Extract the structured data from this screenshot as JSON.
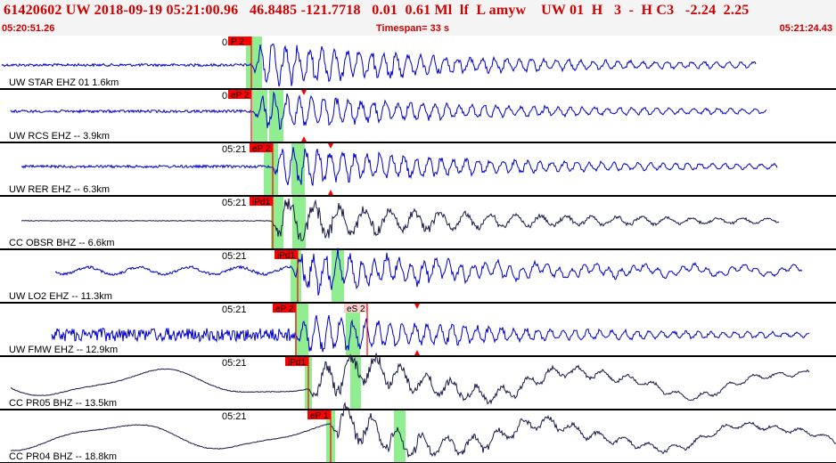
{
  "header": {
    "event_line": "61420602 UW 2018-09-19 05:21:00.96   46.8485 -121.7718   0.01  0.61 Ml  lf  L amyw    UW 01  H   3  -  H C3   -2.24  2.25",
    "start_time": "05:20:51.26",
    "timespan": "Timespan=  33 s",
    "end_time": "05:21:24.43"
  },
  "colors": {
    "header_text": "#d00000",
    "trace_blue": "#0000cc",
    "trace_dark": "#1a1a4a",
    "pick_marker": "#ff0000",
    "green_window": "#90ee90",
    "divider": "#000000"
  },
  "traces": [
    {
      "label": "UW STAR EHZ 01 1.6km",
      "time": "05:21",
      "color": "blue",
      "picks": [
        {
          "text": "P 2",
          "shade": "red"
        }
      ],
      "triangles": false
    },
    {
      "label": "UW RCS EHZ -- 3.9km",
      "time": "05:21",
      "color": "blue",
      "picks": [
        {
          "text": "eP 2",
          "shade": "red"
        }
      ],
      "triangles": true
    },
    {
      "label": "UW RER EHZ -- 6.3km",
      "time": "05:21",
      "color": "blue",
      "picks": [
        {
          "text": "eP 2",
          "shade": "red"
        }
      ],
      "triangles": true
    },
    {
      "label": "CC OBSR BHZ -- 6.6km",
      "time": "05:21",
      "color": "dark",
      "picks": [
        {
          "text": "iPd1",
          "shade": "red"
        }
      ],
      "triangles": false
    },
    {
      "label": "UW LO2 EHZ -- 11.3km",
      "time": "05:21",
      "color": "blue",
      "picks": [
        {
          "text": "iPd1",
          "shade": "red"
        }
      ],
      "triangles": false
    },
    {
      "label": "UW FMW EHZ -- 12.9km",
      "time": "05:21",
      "color": "blue",
      "picks": [
        {
          "text": "eP 2",
          "shade": "red"
        },
        {
          "text": "eS 2",
          "shade": "light"
        }
      ],
      "triangles": true
    },
    {
      "label": "CC PR05 BHZ -- 13.5km",
      "time": "05:21",
      "color": "dark",
      "picks": [
        {
          "text": "iPd1",
          "shade": "red"
        }
      ],
      "triangles": false
    },
    {
      "label": "CC PR04 BHZ -- 18.8km",
      "time": "05:21",
      "color": "dark",
      "picks": [
        {
          "text": "eP 1",
          "shade": "red"
        }
      ],
      "triangles": false
    }
  ]
}
